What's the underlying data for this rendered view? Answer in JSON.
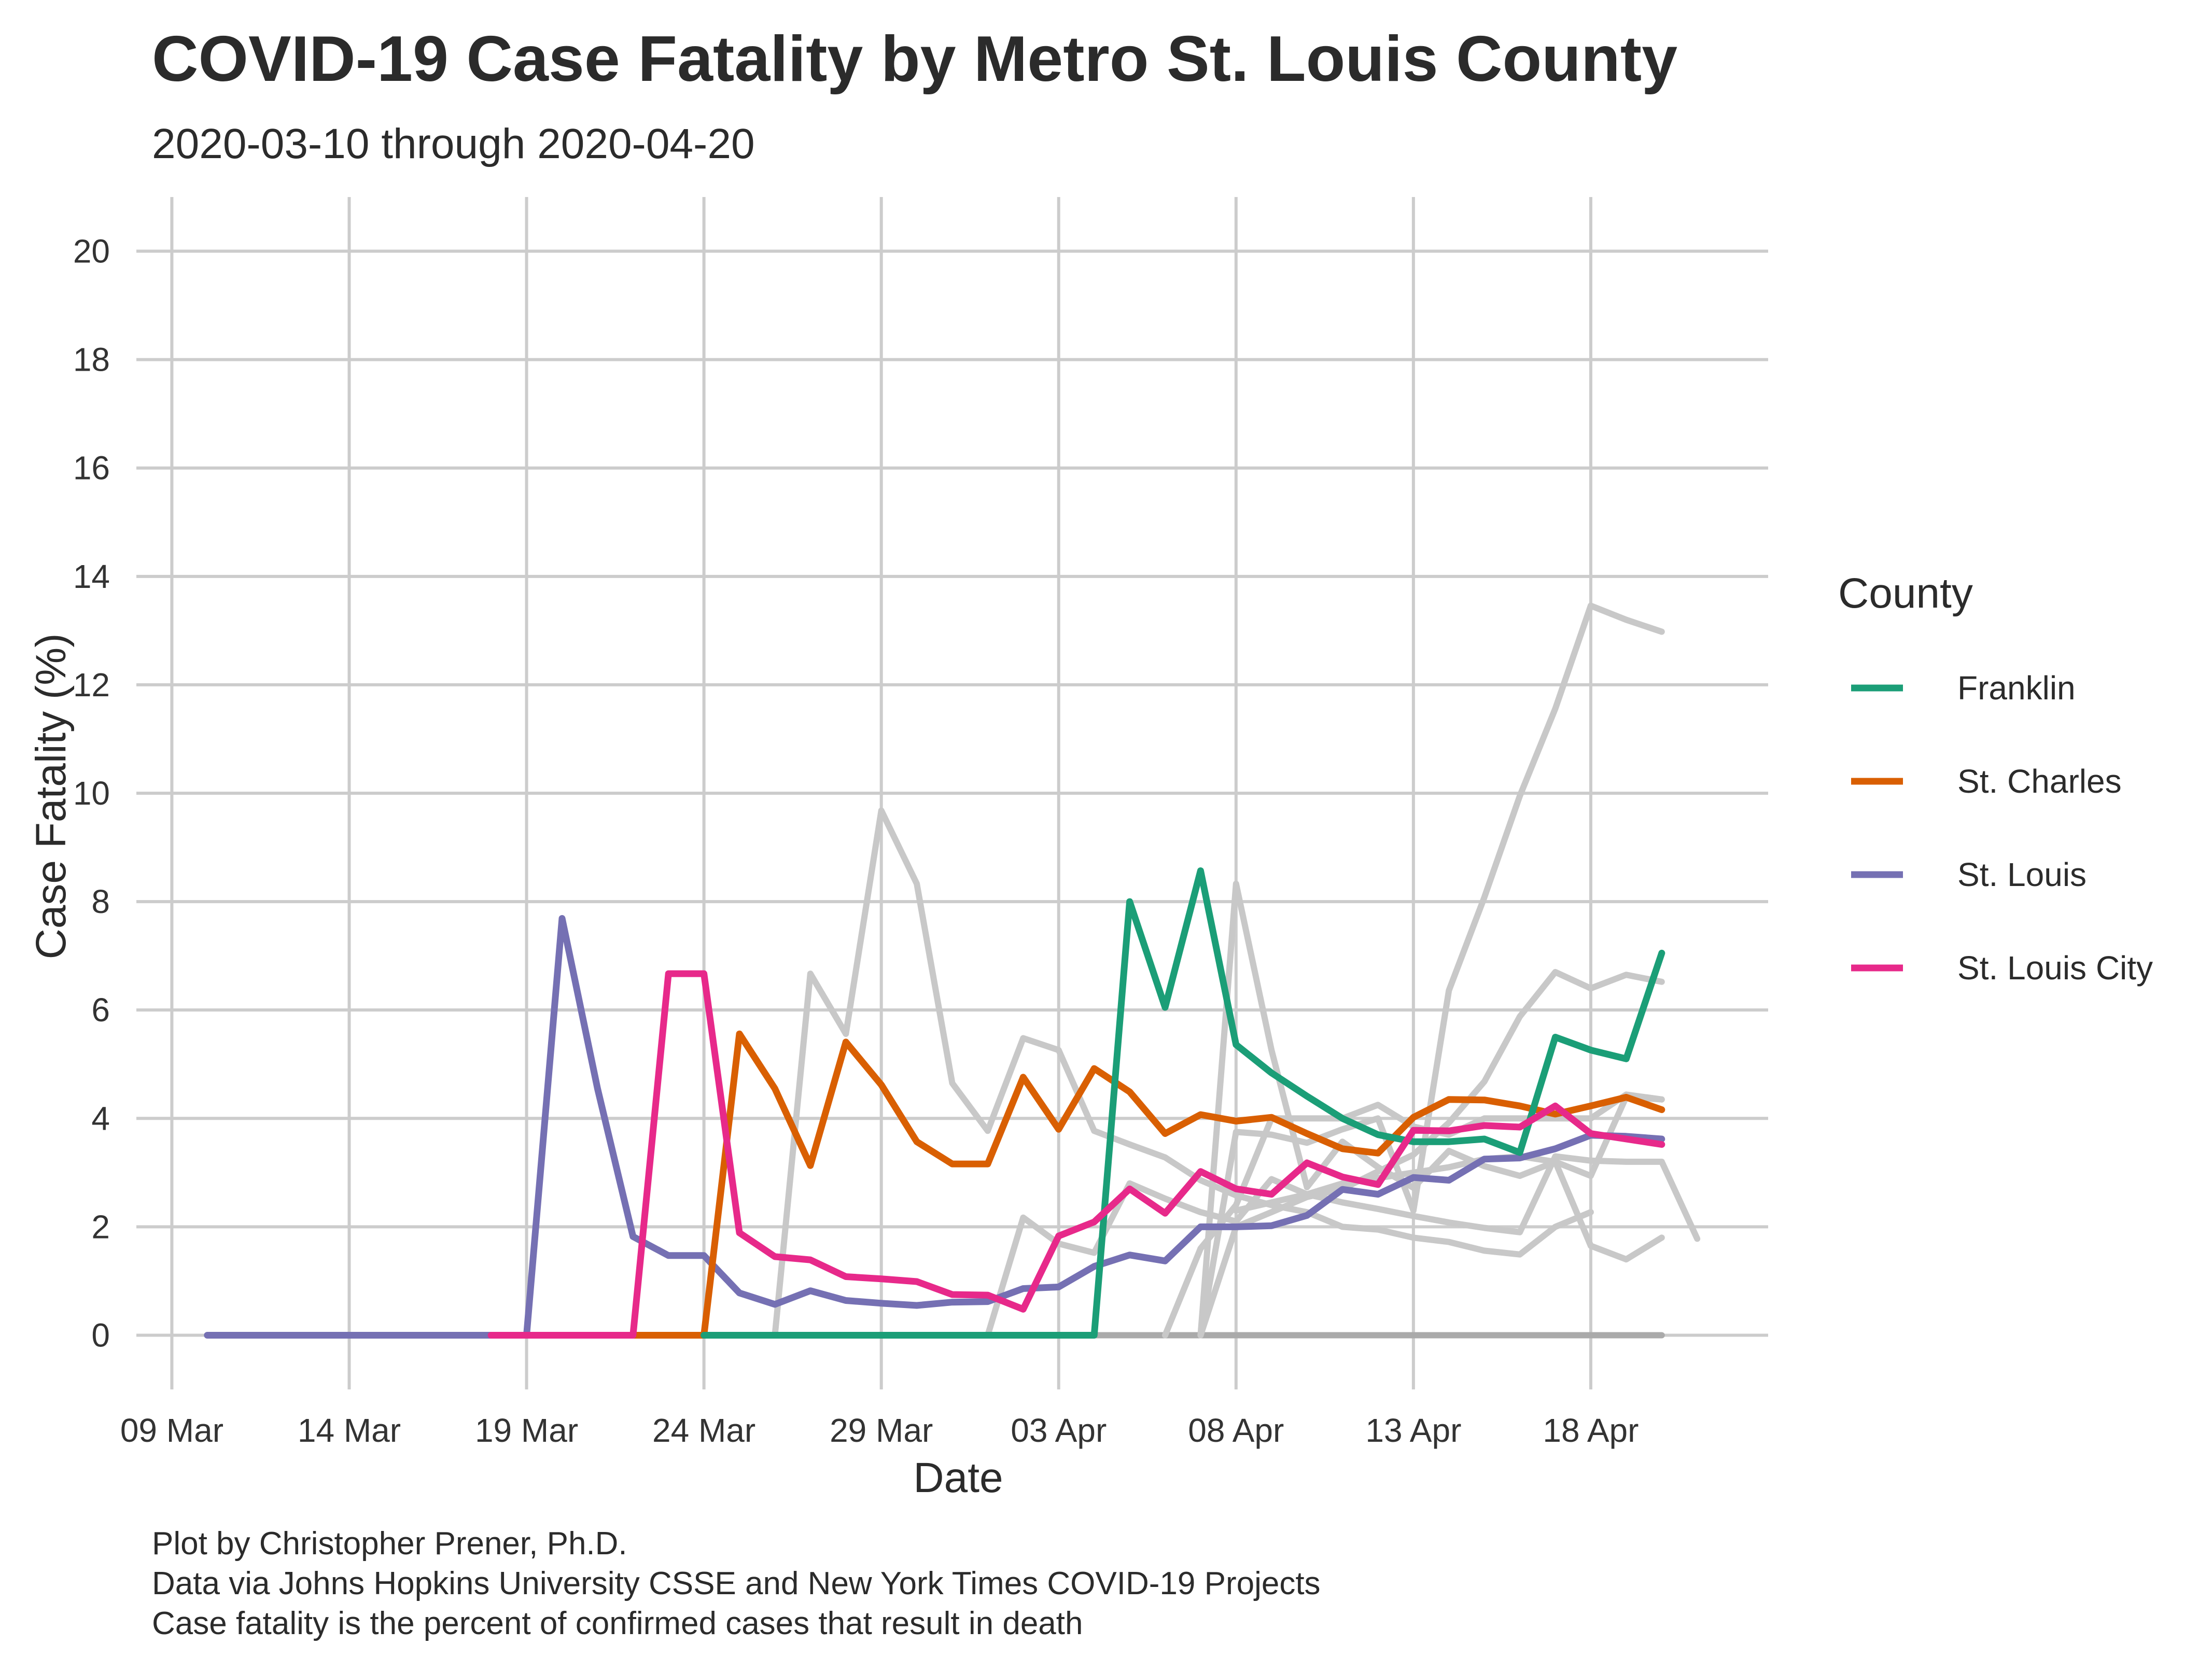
{
  "colors": {
    "grid": "#cccccc",
    "background_series": "#c8c8c8",
    "zero_series": "#aaaaaa"
  },
  "chart_data": {
    "type": "line",
    "title": "COVID-19 Case Fatality by Metro St. Louis County",
    "subtitle": "2020-03-10 through 2020-04-20",
    "xlabel": "Date",
    "ylabel": "Case Fatality (%)",
    "x_ticks": [
      "09 Mar",
      "14 Mar",
      "19 Mar",
      "24 Mar",
      "29 Mar",
      "03 Apr",
      "08 Apr",
      "13 Apr",
      "18 Apr"
    ],
    "x_tick_dates": [
      "2020-03-09",
      "2020-03-14",
      "2020-03-19",
      "2020-03-24",
      "2020-03-29",
      "2020-04-03",
      "2020-04-08",
      "2020-04-13",
      "2020-04-18"
    ],
    "xlim": [
      "2020-03-08",
      "2020-04-23"
    ],
    "y_ticks": [
      "0",
      "2",
      "4",
      "6",
      "8",
      "10",
      "12",
      "14",
      "16",
      "18",
      "20"
    ],
    "ylim": [
      -1,
      21
    ],
    "grid": true,
    "legend_position": "right",
    "legend_title": "County",
    "series": [
      {
        "name": "Franklin",
        "color": "#1b9e77",
        "points": [
          [
            "2020-03-24",
            0
          ],
          [
            "2020-03-25",
            0
          ],
          [
            "2020-03-26",
            0
          ],
          [
            "2020-03-27",
            0
          ],
          [
            "2020-03-28",
            0
          ],
          [
            "2020-03-29",
            0
          ],
          [
            "2020-03-30",
            0
          ],
          [
            "2020-03-31",
            0
          ],
          [
            "2020-04-01",
            0
          ],
          [
            "2020-04-02",
            0
          ],
          [
            "2020-04-03",
            0
          ],
          [
            "2020-04-04",
            0
          ],
          [
            "2020-04-05",
            8.0
          ],
          [
            "2020-04-06",
            6.05
          ],
          [
            "2020-04-07",
            8.57
          ],
          [
            "2020-04-08",
            5.36
          ],
          [
            "2020-04-09",
            4.84
          ],
          [
            "2020-04-10",
            4.41
          ],
          [
            "2020-04-11",
            4.0
          ],
          [
            "2020-04-12",
            3.7
          ],
          [
            "2020-04-13",
            3.57
          ],
          [
            "2020-04-14",
            3.57
          ],
          [
            "2020-04-15",
            3.62
          ],
          [
            "2020-04-16",
            3.37
          ],
          [
            "2020-04-17",
            5.5
          ],
          [
            "2020-04-18",
            5.26
          ],
          [
            "2020-04-19",
            5.1
          ],
          [
            "2020-04-20",
            7.05
          ]
        ]
      },
      {
        "name": "St. Charles",
        "color": "#d95f02",
        "points": [
          [
            "2020-03-22",
            0
          ],
          [
            "2020-03-23",
            0
          ],
          [
            "2020-03-24",
            0
          ],
          [
            "2020-03-25",
            5.56
          ],
          [
            "2020-03-26",
            4.55
          ],
          [
            "2020-03-27",
            3.13
          ],
          [
            "2020-03-28",
            5.41
          ],
          [
            "2020-03-29",
            4.62
          ],
          [
            "2020-03-30",
            3.57
          ],
          [
            "2020-03-31",
            3.16
          ],
          [
            "2020-04-01",
            3.16
          ],
          [
            "2020-04-02",
            4.76
          ],
          [
            "2020-04-03",
            3.8
          ],
          [
            "2020-04-04",
            4.92
          ],
          [
            "2020-04-05",
            4.49
          ],
          [
            "2020-04-06",
            3.72
          ],
          [
            "2020-04-07",
            4.07
          ],
          [
            "2020-04-08",
            3.95
          ],
          [
            "2020-04-09",
            4.02
          ],
          [
            "2020-04-10",
            3.72
          ],
          [
            "2020-04-11",
            3.44
          ],
          [
            "2020-04-12",
            3.36
          ],
          [
            "2020-04-13",
            4.02
          ],
          [
            "2020-04-14",
            4.35
          ],
          [
            "2020-04-15",
            4.34
          ],
          [
            "2020-04-16",
            4.23
          ],
          [
            "2020-04-17",
            4.08
          ],
          [
            "2020-04-18",
            4.23
          ],
          [
            "2020-04-19",
            4.39
          ],
          [
            "2020-04-20",
            4.16
          ]
        ]
      },
      {
        "name": "St. Louis",
        "color": "#7570b3",
        "points": [
          [
            "2020-03-10",
            0
          ],
          [
            "2020-03-11",
            0
          ],
          [
            "2020-03-12",
            0
          ],
          [
            "2020-03-13",
            0
          ],
          [
            "2020-03-14",
            0
          ],
          [
            "2020-03-15",
            0
          ],
          [
            "2020-03-16",
            0
          ],
          [
            "2020-03-17",
            0
          ],
          [
            "2020-03-18",
            0
          ],
          [
            "2020-03-19",
            0
          ],
          [
            "2020-03-20",
            7.69
          ],
          [
            "2020-03-21",
            4.55
          ],
          [
            "2020-03-22",
            1.82
          ],
          [
            "2020-03-23",
            1.47
          ],
          [
            "2020-03-24",
            1.47
          ],
          [
            "2020-03-25",
            0.78
          ],
          [
            "2020-03-26",
            0.57
          ],
          [
            "2020-03-27",
            0.82
          ],
          [
            "2020-03-28",
            0.64
          ],
          [
            "2020-03-29",
            0.59
          ],
          [
            "2020-03-30",
            0.55
          ],
          [
            "2020-03-31",
            0.61
          ],
          [
            "2020-04-01",
            0.62
          ],
          [
            "2020-04-02",
            0.86
          ],
          [
            "2020-04-03",
            0.89
          ],
          [
            "2020-04-04",
            1.27
          ],
          [
            "2020-04-05",
            1.48
          ],
          [
            "2020-04-06",
            1.37
          ],
          [
            "2020-04-07",
            2.0
          ],
          [
            "2020-04-08",
            2.0
          ],
          [
            "2020-04-09",
            2.02
          ],
          [
            "2020-04-10",
            2.21
          ],
          [
            "2020-04-11",
            2.69
          ],
          [
            "2020-04-12",
            2.6
          ],
          [
            "2020-04-13",
            2.91
          ],
          [
            "2020-04-14",
            2.86
          ],
          [
            "2020-04-15",
            3.25
          ],
          [
            "2020-04-16",
            3.27
          ],
          [
            "2020-04-17",
            3.44
          ],
          [
            "2020-04-18",
            3.69
          ],
          [
            "2020-04-19",
            3.67
          ],
          [
            "2020-04-20",
            3.62
          ]
        ]
      },
      {
        "name": "St. Louis City",
        "color": "#e7298a",
        "points": [
          [
            "2020-03-18",
            0
          ],
          [
            "2020-03-19",
            0
          ],
          [
            "2020-03-20",
            0
          ],
          [
            "2020-03-21",
            0
          ],
          [
            "2020-03-22",
            0
          ],
          [
            "2020-03-23",
            6.67
          ],
          [
            "2020-03-24",
            6.67
          ],
          [
            "2020-03-25",
            1.89
          ],
          [
            "2020-03-26",
            1.45
          ],
          [
            "2020-03-27",
            1.39
          ],
          [
            "2020-03-28",
            1.08
          ],
          [
            "2020-03-29",
            1.04
          ],
          [
            "2020-03-30",
            0.99
          ],
          [
            "2020-03-31",
            0.75
          ],
          [
            "2020-04-01",
            0.74
          ],
          [
            "2020-04-02",
            0.48
          ],
          [
            "2020-04-03",
            1.83
          ],
          [
            "2020-04-04",
            2.09
          ],
          [
            "2020-04-05",
            2.7
          ],
          [
            "2020-04-06",
            2.25
          ],
          [
            "2020-04-07",
            3.02
          ],
          [
            "2020-04-08",
            2.7
          ],
          [
            "2020-04-09",
            2.6
          ],
          [
            "2020-04-10",
            3.18
          ],
          [
            "2020-04-11",
            2.92
          ],
          [
            "2020-04-12",
            2.78
          ],
          [
            "2020-04-13",
            3.78
          ],
          [
            "2020-04-14",
            3.77
          ],
          [
            "2020-04-15",
            3.87
          ],
          [
            "2020-04-16",
            3.84
          ],
          [
            "2020-04-17",
            4.23
          ],
          [
            "2020-04-18",
            3.72
          ],
          [
            "2020-04-19",
            3.62
          ],
          [
            "2020-04-20",
            3.52
          ]
        ]
      }
    ],
    "background_series": [
      {
        "points": [
          [
            "2020-03-26",
            0
          ],
          [
            "2020-03-27",
            6.67
          ],
          [
            "2020-03-28",
            5.56
          ],
          [
            "2020-03-29",
            9.68
          ],
          [
            "2020-03-30",
            8.33
          ],
          [
            "2020-03-31",
            4.65
          ],
          [
            "2020-04-01",
            3.77
          ],
          [
            "2020-04-02",
            5.48
          ],
          [
            "2020-04-03",
            5.26
          ],
          [
            "2020-04-04",
            3.77
          ],
          [
            "2020-04-05",
            3.52
          ],
          [
            "2020-04-06",
            3.28
          ],
          [
            "2020-04-07",
            2.86
          ],
          [
            "2020-04-08",
            2.58
          ],
          [
            "2020-04-09",
            2.4
          ],
          [
            "2020-04-10",
            2.27
          ],
          [
            "2020-04-11",
            2.0
          ],
          [
            "2020-04-12",
            1.95
          ],
          [
            "2020-04-13",
            1.8
          ],
          [
            "2020-04-14",
            1.72
          ],
          [
            "2020-04-15",
            1.56
          ],
          [
            "2020-04-16",
            1.49
          ],
          [
            "2020-04-17",
            2.0
          ],
          [
            "2020-04-18",
            2.27
          ]
        ]
      },
      {
        "points": [
          [
            "2020-04-01",
            0
          ],
          [
            "2020-04-02",
            2.17
          ],
          [
            "2020-04-03",
            1.69
          ],
          [
            "2020-04-04",
            1.52
          ],
          [
            "2020-04-05",
            2.8
          ],
          [
            "2020-04-06",
            2.52
          ],
          [
            "2020-04-07",
            2.27
          ],
          [
            "2020-04-08",
            2.1
          ],
          [
            "2020-04-09",
            2.88
          ],
          [
            "2020-04-10",
            2.6
          ],
          [
            "2020-04-11",
            2.45
          ],
          [
            "2020-04-12",
            2.33
          ],
          [
            "2020-04-13",
            2.2
          ],
          [
            "2020-04-14",
            2.08
          ],
          [
            "2020-04-15",
            1.98
          ],
          [
            "2020-04-16",
            1.9
          ],
          [
            "2020-04-17",
            3.3
          ],
          [
            "2020-04-18",
            3.22
          ],
          [
            "2020-04-19",
            3.2
          ],
          [
            "2020-04-20",
            3.2
          ],
          [
            "2020-04-21",
            1.78
          ]
        ]
      },
      {
        "points": [
          [
            "2020-04-06",
            0
          ],
          [
            "2020-04-07",
            1.6
          ],
          [
            "2020-04-08",
            2.4
          ],
          [
            "2020-04-09",
            4.0
          ],
          [
            "2020-04-10",
            4.0
          ],
          [
            "2020-04-11",
            4.0
          ],
          [
            "2020-04-12",
            4.25
          ],
          [
            "2020-04-13",
            3.85
          ],
          [
            "2020-04-14",
            3.7
          ],
          [
            "2020-04-15",
            4.0
          ],
          [
            "2020-04-16",
            4.0
          ],
          [
            "2020-04-17",
            4.0
          ],
          [
            "2020-04-18",
            4.0
          ],
          [
            "2020-04-19",
            4.44
          ],
          [
            "2020-04-20",
            4.35
          ]
        ]
      },
      {
        "points": [
          [
            "2020-04-07",
            0
          ],
          [
            "2020-04-08",
            8.33
          ],
          [
            "2020-04-09",
            5.26
          ],
          [
            "2020-04-10",
            2.73
          ],
          [
            "2020-04-11",
            3.57
          ],
          [
            "2020-04-12",
            3.1
          ],
          [
            "2020-04-13",
            2.72
          ],
          [
            "2020-04-14",
            3.4
          ],
          [
            "2020-04-15",
            3.12
          ],
          [
            "2020-04-16",
            2.94
          ],
          [
            "2020-04-17",
            3.2
          ],
          [
            "2020-04-18",
            2.94
          ],
          [
            "2020-04-19",
            4.4
          ],
          [
            "2020-04-20",
            4.35
          ]
        ]
      },
      {
        "points": [
          [
            "2020-04-07",
            0
          ],
          [
            "2020-04-08",
            3.75
          ],
          [
            "2020-04-09",
            3.7
          ],
          [
            "2020-04-10",
            3.55
          ],
          [
            "2020-04-11",
            3.8
          ],
          [
            "2020-04-12",
            4.0
          ],
          [
            "2020-04-13",
            2.3
          ],
          [
            "2020-04-14",
            6.36
          ],
          [
            "2020-04-15",
            8.08
          ],
          [
            "2020-04-16",
            9.95
          ],
          [
            "2020-04-17",
            11.56
          ],
          [
            "2020-04-18",
            13.46
          ],
          [
            "2020-04-19",
            13.2
          ],
          [
            "2020-04-20",
            12.98
          ]
        ]
      },
      {
        "points": [
          [
            "2020-04-07",
            0
          ],
          [
            "2020-04-08",
            2.0
          ],
          [
            "2020-04-09",
            2.27
          ],
          [
            "2020-04-10",
            2.55
          ],
          [
            "2020-04-11",
            2.7
          ],
          [
            "2020-04-12",
            3.02
          ],
          [
            "2020-04-13",
            3.33
          ],
          [
            "2020-04-14",
            3.92
          ],
          [
            "2020-04-15",
            4.68
          ],
          [
            "2020-04-16",
            5.88
          ],
          [
            "2020-04-17",
            6.7
          ],
          [
            "2020-04-18",
            6.4
          ],
          [
            "2020-04-19",
            6.65
          ],
          [
            "2020-04-20",
            6.52
          ]
        ]
      },
      {
        "points": [
          [
            "2020-04-08",
            2.3
          ],
          [
            "2020-04-09",
            2.45
          ],
          [
            "2020-04-10",
            2.6
          ],
          [
            "2020-04-11",
            2.8
          ],
          [
            "2020-04-12",
            2.9
          ],
          [
            "2020-04-13",
            3.0
          ],
          [
            "2020-04-14",
            3.1
          ],
          [
            "2020-04-15",
            3.25
          ],
          [
            "2020-04-16",
            3.3
          ],
          [
            "2020-04-17",
            3.2
          ],
          [
            "2020-04-18",
            1.65
          ],
          [
            "2020-04-19",
            1.4
          ],
          [
            "2020-04-20",
            1.8
          ]
        ]
      }
    ],
    "zero_baseline": {
      "from": "2020-04-04",
      "to": "2020-04-20",
      "value": 0
    }
  },
  "caption": [
    "Plot by Christopher Prener, Ph.D.",
    "Data via Johns Hopkins University CSSE and New York Times COVID-19 Projects",
    "Case fatality is the percent of confirmed cases that result in death"
  ]
}
